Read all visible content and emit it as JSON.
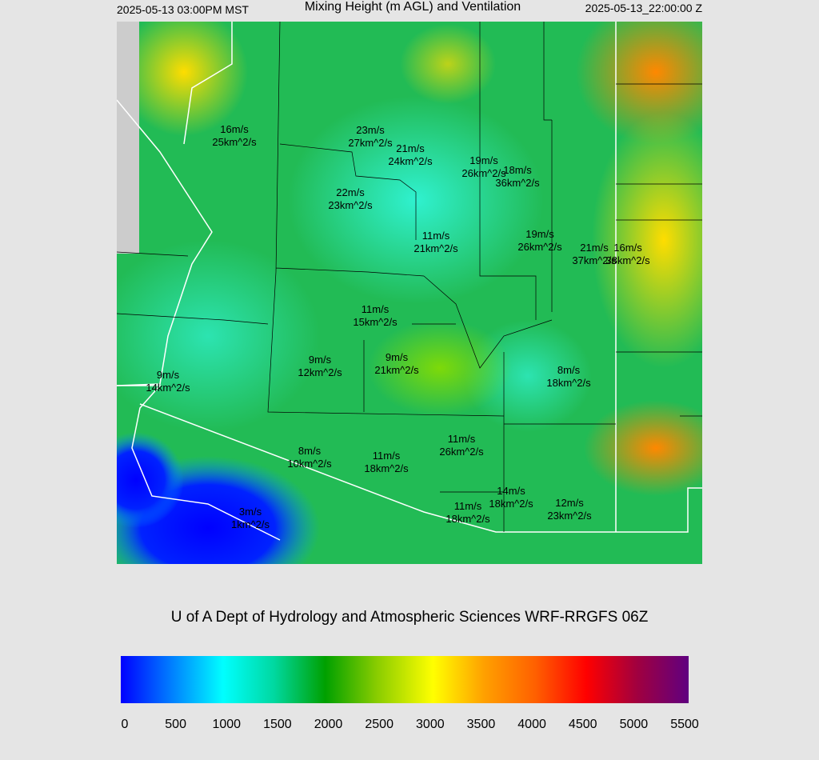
{
  "header": {
    "valid_local": "2025-05-13 03:00PM MST",
    "title": "Mixing Height (m AGL) and Ventilation",
    "valid_utc": "2025-05-13_22:00:00 Z"
  },
  "stations": [
    {
      "wind": "16m/s",
      "vent": "25km^2/s"
    },
    {
      "wind": "23m/s",
      "vent": "27km^2/s"
    },
    {
      "wind": "21m/s",
      "vent": "24km^2/s"
    },
    {
      "wind": "19m/s",
      "vent": "26km^2/s"
    },
    {
      "wind": "18m/s",
      "vent": "36km^2/s"
    },
    {
      "wind": "22m/s",
      "vent": "23km^2/s"
    },
    {
      "wind": "11m/s",
      "vent": "21km^2/s"
    },
    {
      "wind": "19m/s",
      "vent": "26km^2/s"
    },
    {
      "wind": "21m/s",
      "vent": "37km^2/s"
    },
    {
      "wind": "16m/s",
      "vent": "38km^2/s"
    },
    {
      "wind": "11m/s",
      "vent": "15km^2/s"
    },
    {
      "wind": "9m/s",
      "vent": "12km^2/s"
    },
    {
      "wind": "9m/s",
      "vent": "21km^2/s"
    },
    {
      "wind": "8m/s",
      "vent": "18km^2/s"
    },
    {
      "wind": "9m/s",
      "vent": "14km^2/s"
    },
    {
      "wind": "11m/s",
      "vent": "26km^2/s"
    },
    {
      "wind": "8m/s",
      "vent": "10km^2/s"
    },
    {
      "wind": "11m/s",
      "vent": "18km^2/s"
    },
    {
      "wind": "14m/s",
      "vent": "18km^2/s"
    },
    {
      "wind": "12m/s",
      "vent": "23km^2/s"
    },
    {
      "wind": "11m/s",
      "vent": "18km^2/s"
    },
    {
      "wind": "3m/s",
      "vent": "1km^2/s"
    }
  ],
  "footer": {
    "credit": "U of A Dept of Hydrology and Atmospheric Sciences WRF-RRGFS 06Z"
  },
  "colorbar": {
    "ticks": [
      0,
      500,
      1000,
      1500,
      2000,
      2500,
      3000,
      3500,
      4000,
      4500,
      5000,
      5500
    ]
  }
}
